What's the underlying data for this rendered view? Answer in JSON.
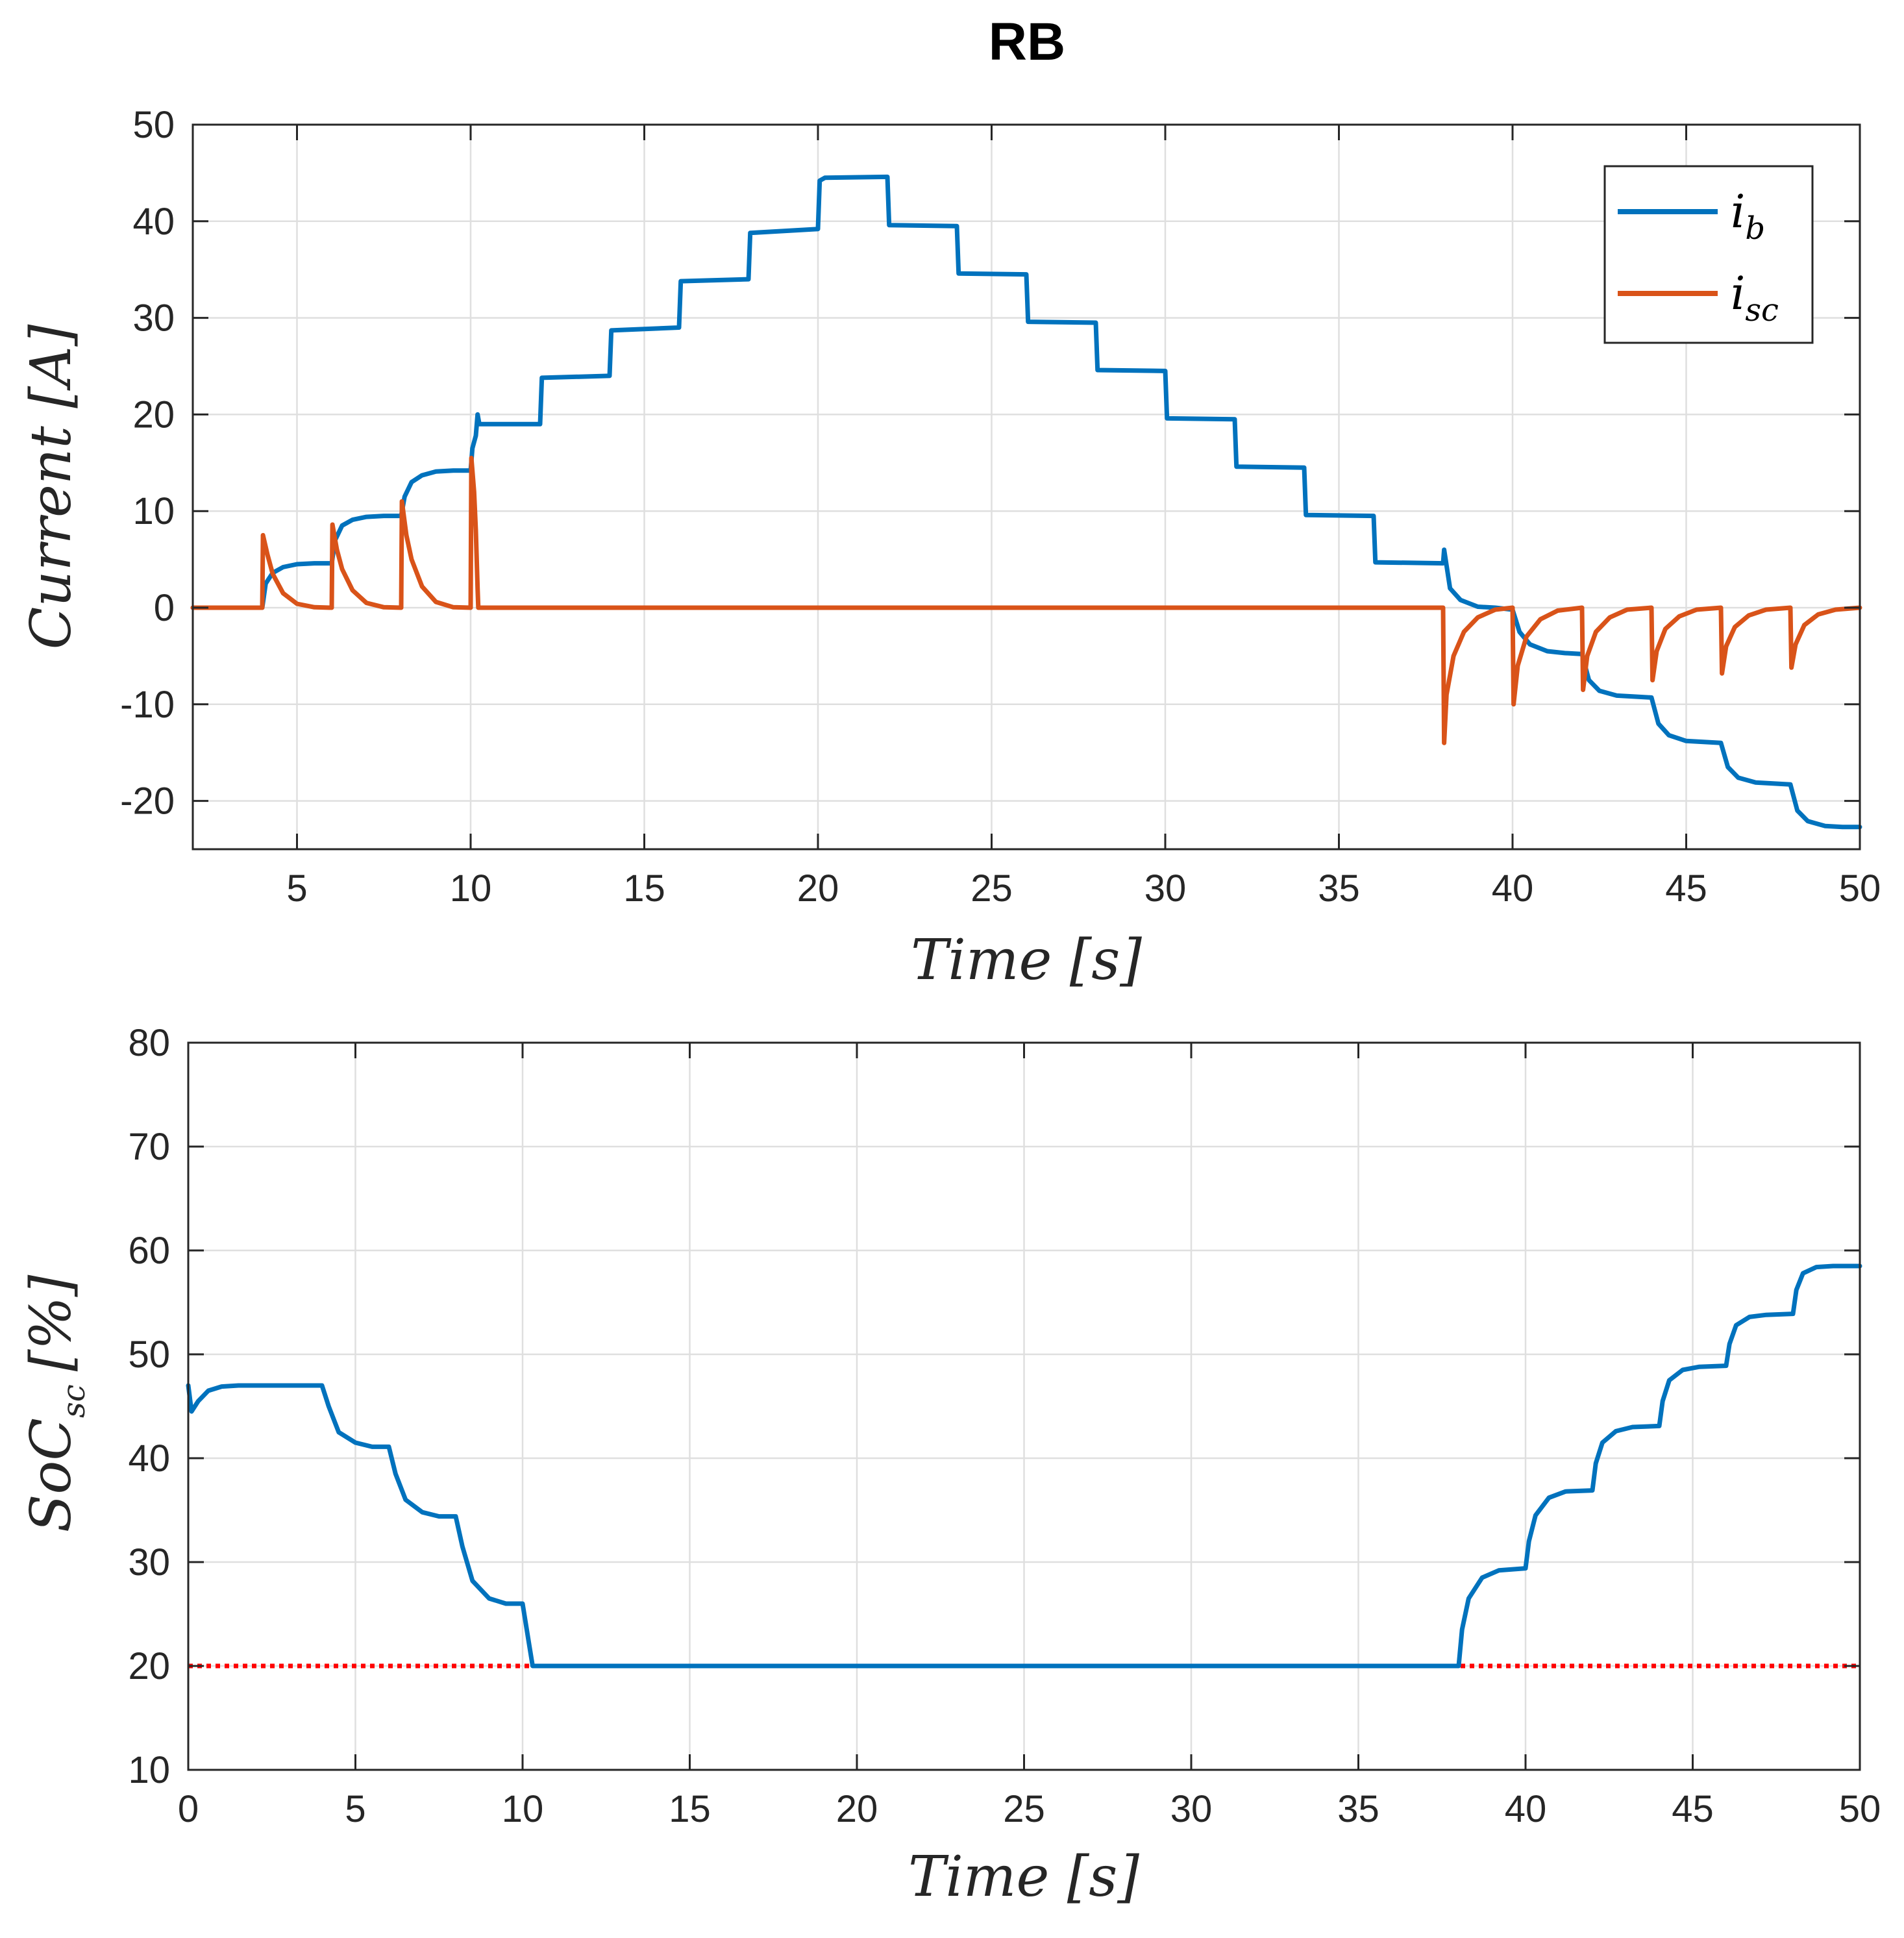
{
  "chart_data": [
    {
      "type": "line",
      "title": "RB",
      "xlabel": "Time [s]",
      "ylabel": "Current [A]",
      "xlim": [
        2,
        50
      ],
      "ylim": [
        -25,
        50
      ],
      "xticks": [
        5,
        10,
        15,
        20,
        25,
        30,
        35,
        40,
        45,
        50
      ],
      "yticks": [
        -20,
        -10,
        0,
        10,
        20,
        30,
        40,
        50
      ],
      "grid": true,
      "legend_position": "top-right",
      "series": [
        {
          "name": "i_b",
          "label_main": "i",
          "label_sub": "b",
          "color": "#0072BD",
          "x": [
            2,
            4,
            4.1,
            4.3,
            4.6,
            5,
            5.5,
            6,
            6.1,
            6.3,
            6.6,
            7,
            7.5,
            8,
            8.1,
            8.3,
            8.6,
            9,
            9.5,
            10,
            10.05,
            10.15,
            10.2,
            10.25,
            12,
            12.05,
            14,
            14.05,
            16,
            16.05,
            18,
            18.05,
            20,
            20.05,
            20.2,
            22,
            22.05,
            24,
            24.05,
            26,
            26.05,
            28,
            28.05,
            30,
            30.05,
            32,
            32.05,
            34,
            34.05,
            36,
            36.05,
            38,
            38.03,
            38.2,
            38.5,
            39,
            39.5,
            40,
            40.2,
            40.5,
            41,
            41.5,
            42,
            42.2,
            42.5,
            43,
            43.5,
            44,
            44.2,
            44.5,
            45,
            45.5,
            46,
            46.2,
            46.5,
            47,
            47.5,
            48,
            48.2,
            48.5,
            49,
            49.5,
            50
          ],
          "y": [
            0,
            0,
            2.5,
            3.6,
            4.2,
            4.5,
            4.6,
            4.6,
            7,
            8.5,
            9.1,
            9.4,
            9.5,
            9.5,
            11.5,
            13,
            13.7,
            14.1,
            14.2,
            14.2,
            16.5,
            17.8,
            20,
            19,
            19,
            23.8,
            24,
            28.7,
            29,
            33.8,
            34,
            38.8,
            39.2,
            44.2,
            44.5,
            44.6,
            39.6,
            39.5,
            34.6,
            34.5,
            29.6,
            29.5,
            24.6,
            24.5,
            19.6,
            19.5,
            14.6,
            14.5,
            9.6,
            9.5,
            4.7,
            4.6,
            6,
            2,
            0.8,
            0.1,
            0,
            -0.2,
            -2.5,
            -3.8,
            -4.5,
            -4.7,
            -4.8,
            -7.5,
            -8.6,
            -9.1,
            -9.2,
            -9.3,
            -12,
            -13.2,
            -13.8,
            -13.9,
            -14,
            -16.5,
            -17.6,
            -18.1,
            -18.2,
            -18.3,
            -21,
            -22.1,
            -22.6,
            -22.7,
            -22.7
          ]
        },
        {
          "name": "i_sc",
          "label_main": "i",
          "label_sub": "sc",
          "color": "#D95319",
          "x": [
            2,
            4,
            4.02,
            4.15,
            4.3,
            4.6,
            5,
            5.5,
            6,
            6.02,
            6.15,
            6.3,
            6.6,
            7,
            7.5,
            8,
            8.02,
            8.15,
            8.3,
            8.6,
            9,
            9.5,
            10,
            10.02,
            10.1,
            10.15,
            10.2,
            10.22,
            38,
            38.03,
            38.1,
            38.3,
            38.6,
            39,
            39.5,
            40,
            40.03,
            40.15,
            40.4,
            40.8,
            41.3,
            42,
            42.03,
            42.15,
            42.4,
            42.8,
            43.3,
            44,
            44.03,
            44.15,
            44.4,
            44.8,
            45.3,
            46,
            46.03,
            46.15,
            46.4,
            46.8,
            47.3,
            48,
            48.03,
            48.15,
            48.4,
            48.8,
            49.3,
            50
          ],
          "y": [
            0,
            0,
            7.5,
            5.5,
            3.5,
            1.5,
            0.4,
            0.05,
            0,
            8.6,
            6,
            4,
            1.8,
            0.5,
            0.05,
            0,
            11,
            7.5,
            5,
            2.2,
            0.6,
            0.05,
            0,
            15.5,
            12,
            8,
            2,
            0,
            0,
            -14,
            -9,
            -5,
            -2.5,
            -1,
            -0.2,
            0,
            -10,
            -6,
            -3,
            -1.2,
            -0.3,
            0,
            -8.5,
            -5,
            -2.5,
            -1,
            -0.2,
            0,
            -7.5,
            -4.5,
            -2.2,
            -0.9,
            -0.2,
            0,
            -6.8,
            -4,
            -2,
            -0.8,
            -0.2,
            0,
            -6.2,
            -3.8,
            -1.8,
            -0.7,
            -0.2,
            0
          ]
        }
      ]
    },
    {
      "type": "line",
      "title": "",
      "xlabel": "Time [s]",
      "ylabel": "SoC_sc [%]",
      "ylabel_main": "SoC",
      "ylabel_sub": "sc",
      "ylabel_unit": "[%]",
      "xlim": [
        0,
        50
      ],
      "ylim": [
        10,
        80
      ],
      "xticks": [
        0,
        5,
        10,
        15,
        20,
        25,
        30,
        35,
        40,
        45,
        50
      ],
      "yticks": [
        10,
        20,
        30,
        40,
        50,
        60,
        70,
        80
      ],
      "grid": true,
      "series": [
        {
          "name": "SoC_sc",
          "color": "#0072BD",
          "x": [
            0,
            0.1,
            0.3,
            0.6,
            1,
            1.5,
            2,
            4,
            4.2,
            4.5,
            5,
            5.5,
            6,
            6.2,
            6.5,
            7,
            7.5,
            8,
            8.2,
            8.5,
            9,
            9.5,
            10,
            10.2,
            10.3,
            23,
            23.5,
            38,
            38.1,
            38.3,
            38.7,
            39.2,
            40,
            40.1,
            40.3,
            40.7,
            41.2,
            42,
            42.1,
            42.3,
            42.7,
            43.2,
            44,
            44.1,
            44.3,
            44.7,
            45.2,
            46,
            46.1,
            46.3,
            46.7,
            47.2,
            48,
            48.1,
            48.3,
            48.7,
            49.2,
            50
          ],
          "y": [
            47,
            44.5,
            45.5,
            46.5,
            46.9,
            47,
            47,
            47,
            45,
            42.5,
            41.5,
            41.1,
            41.1,
            38.5,
            36,
            34.8,
            34.4,
            34.4,
            31.5,
            28.2,
            26.5,
            26,
            26,
            22,
            20,
            20,
            20,
            20,
            23.5,
            26.5,
            28.5,
            29.2,
            29.4,
            32,
            34.5,
            36.2,
            36.8,
            36.9,
            39.5,
            41.5,
            42.6,
            43,
            43.1,
            45.5,
            47.5,
            48.5,
            48.8,
            48.9,
            51,
            52.8,
            53.6,
            53.8,
            53.9,
            56.2,
            57.8,
            58.4,
            58.5,
            58.5
          ]
        }
      ],
      "reference_line": {
        "y": 20,
        "color": "#FF0000",
        "style": "dotted"
      }
    }
  ]
}
